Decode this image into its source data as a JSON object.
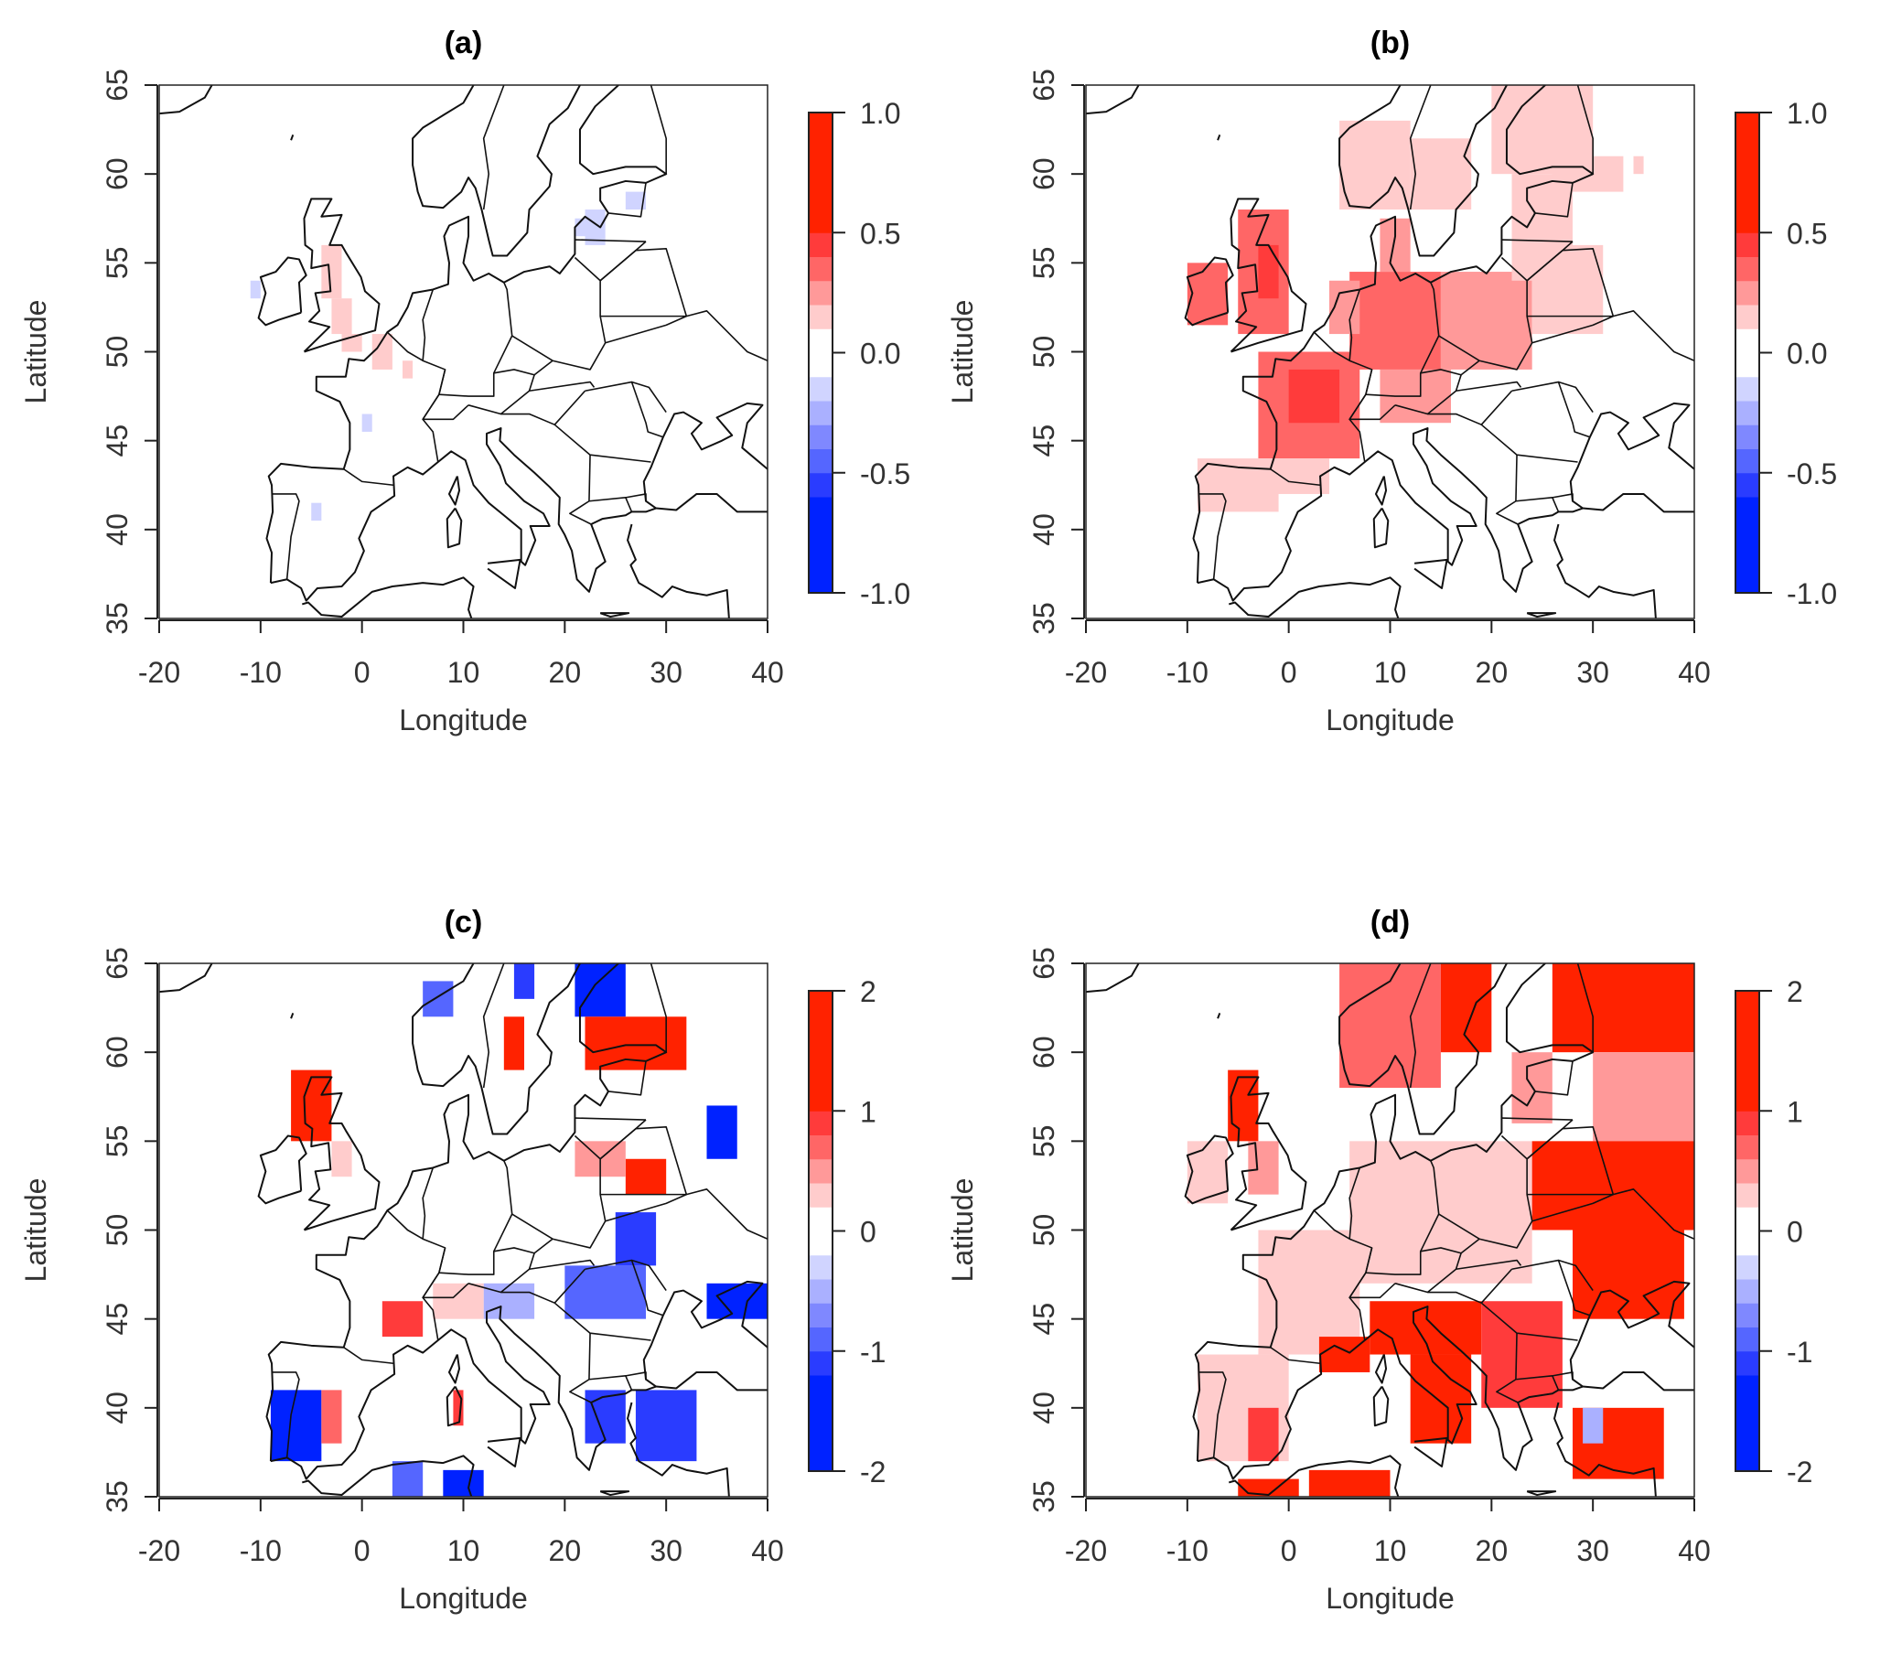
{
  "chart_data": [
    {
      "type": "heatmap",
      "title": "(a)",
      "xlabel": "Longitude",
      "ylabel": "Latitude",
      "xlim": [
        -20,
        40
      ],
      "ylim": [
        35,
        65
      ],
      "xticks": [
        "-20",
        "-10",
        "0",
        "10",
        "20",
        "30",
        "40"
      ],
      "yticks": [
        "35",
        "40",
        "45",
        "50",
        "55",
        "60",
        "65"
      ],
      "colorbar": {
        "range": [
          -1,
          1
        ],
        "ticks": [
          "-1.0",
          "-0.5",
          "0.0",
          "0.5",
          "1.0"
        ]
      },
      "cells": [
        [
          -4,
          53,
          -2,
          56,
          0.15
        ],
        [
          -3,
          51,
          -1,
          53,
          0.15
        ],
        [
          -2,
          50,
          0,
          51,
          0.12
        ],
        [
          1,
          49,
          3,
          51,
          0.12
        ],
        [
          4,
          48.5,
          5,
          49.5,
          0.12
        ],
        [
          -11,
          53,
          -10,
          54,
          -0.15
        ],
        [
          0,
          45.5,
          1,
          46.5,
          -0.15
        ],
        [
          -5,
          40.5,
          -4,
          41.5,
          -0.15
        ],
        [
          22,
          56,
          24,
          58,
          -0.15
        ],
        [
          26,
          58,
          28,
          59,
          -0.15
        ],
        [
          21,
          56.5,
          22,
          57.5,
          -0.12
        ]
      ]
    },
    {
      "type": "heatmap",
      "title": "(b)",
      "xlabel": "Longitude",
      "ylabel": "Latitude",
      "xlim": [
        -20,
        40
      ],
      "ylim": [
        35,
        65
      ],
      "xticks": [
        "-20",
        "-10",
        "0",
        "10",
        "20",
        "30",
        "40"
      ],
      "yticks": [
        "35",
        "40",
        "45",
        "50",
        "55",
        "60",
        "65"
      ],
      "colorbar": {
        "range": [
          -1,
          1
        ],
        "ticks": [
          "-1.0",
          "-0.5",
          "0.0",
          "0.5",
          "1.0"
        ]
      },
      "cells": [
        [
          -5,
          51,
          0,
          58,
          0.35
        ],
        [
          -3,
          53,
          -1,
          56,
          0.45
        ],
        [
          -10,
          51.5,
          -6,
          55,
          0.3
        ],
        [
          -3,
          44,
          7,
          50,
          0.35
        ],
        [
          0,
          46,
          5,
          49,
          0.42
        ],
        [
          -2,
          42,
          4,
          44,
          0.15
        ],
        [
          -9,
          41,
          -1,
          44,
          0.15
        ],
        [
          6,
          49,
          15,
          54.5,
          0.3
        ],
        [
          4,
          51,
          7,
          54,
          0.22
        ],
        [
          9,
          46,
          16,
          49,
          0.22
        ],
        [
          15,
          49,
          24,
          54.5,
          0.22
        ],
        [
          24,
          51,
          31,
          56,
          0.15
        ],
        [
          22,
          54,
          28,
          60,
          0.15
        ],
        [
          5,
          58,
          12,
          63,
          0.15
        ],
        [
          12,
          58,
          18,
          62,
          0.12
        ],
        [
          20,
          60,
          30,
          65,
          0.12
        ],
        [
          26,
          59,
          33,
          61,
          0.12
        ],
        [
          34,
          60,
          35,
          61,
          0.12
        ],
        [
          9,
          54.5,
          12,
          57.5,
          0.2
        ]
      ]
    },
    {
      "type": "heatmap",
      "title": "(c)",
      "xlabel": "Longitude",
      "ylabel": "Latitude",
      "xlim": [
        -20,
        40
      ],
      "ylim": [
        35,
        65
      ],
      "xticks": [
        "-20",
        "-10",
        "0",
        "10",
        "20",
        "30",
        "40"
      ],
      "yticks": [
        "35",
        "40",
        "45",
        "50",
        "55",
        "60",
        "65"
      ],
      "colorbar": {
        "range": [
          -2,
          2
        ],
        "ticks": [
          "-2",
          "-1",
          "0",
          "1",
          "2"
        ]
      },
      "cells": [
        [
          -7,
          55,
          -3,
          59,
          1.2
        ],
        [
          -3,
          53,
          -1,
          55,
          0.3
        ],
        [
          6,
          62,
          9,
          64,
          -0.8
        ],
        [
          15,
          63,
          17,
          65,
          -1.0
        ],
        [
          21,
          62,
          26,
          65,
          -1.2
        ],
        [
          14,
          59,
          16,
          62,
          1.0
        ],
        [
          22,
          59,
          32,
          62,
          1.0
        ],
        [
          34,
          54,
          37,
          57,
          -1.2
        ],
        [
          26,
          52,
          30,
          54,
          1.1
        ],
        [
          21,
          53,
          26,
          55,
          0.4
        ],
        [
          25,
          48,
          29,
          51,
          -1.0
        ],
        [
          20,
          45,
          28,
          48,
          -0.8
        ],
        [
          34,
          45,
          40,
          47,
          -1.2
        ],
        [
          12,
          45,
          17,
          47,
          -0.5
        ],
        [
          2,
          44,
          6,
          46,
          0.8
        ],
        [
          7,
          45,
          12,
          47,
          0.3
        ],
        [
          -9,
          37,
          -4,
          41,
          -1.2
        ],
        [
          -4,
          38,
          -2,
          41,
          0.6
        ],
        [
          22,
          38,
          26,
          41,
          -1.0
        ],
        [
          27,
          37,
          33,
          41,
          -1.0
        ],
        [
          3,
          35,
          6,
          37,
          -0.8
        ],
        [
          8,
          35,
          12,
          36.5,
          -1.2
        ],
        [
          9,
          39,
          10,
          41,
          0.8
        ]
      ]
    },
    {
      "type": "heatmap",
      "title": "(d)",
      "xlabel": "Longitude",
      "ylabel": "Latitude",
      "xlim": [
        -20,
        40
      ],
      "ylim": [
        35,
        65
      ],
      "xticks": [
        "-20",
        "-10",
        "0",
        "10",
        "20",
        "30",
        "40"
      ],
      "yticks": [
        "35",
        "40",
        "45",
        "50",
        "55",
        "60",
        "65"
      ],
      "colorbar": {
        "range": [
          -2,
          2
        ],
        "ticks": [
          "-2",
          "-1",
          "0",
          "1",
          "2"
        ]
      },
      "cells": [
        [
          -6,
          55,
          -3,
          59,
          1.2
        ],
        [
          -4,
          52,
          -1,
          55,
          0.5
        ],
        [
          -10,
          51.5,
          -6,
          55,
          0.3
        ],
        [
          5,
          58,
          15,
          65,
          0.6
        ],
        [
          15,
          60,
          20,
          65,
          1.0
        ],
        [
          22,
          56,
          26,
          60,
          0.4
        ],
        [
          26,
          60,
          40,
          65,
          1.2
        ],
        [
          30,
          55,
          40,
          60,
          0.5
        ],
        [
          -3,
          43,
          7,
          50,
          0.3
        ],
        [
          6,
          47,
          24,
          55,
          0.3
        ],
        [
          24,
          50,
          40,
          55,
          1.0
        ],
        [
          28,
          45,
          39,
          50,
          1.1
        ],
        [
          8,
          43,
          19,
          46,
          1.1
        ],
        [
          12,
          38,
          18,
          43,
          1.0
        ],
        [
          19,
          40,
          27,
          46,
          0.9
        ],
        [
          3,
          42,
          8,
          44,
          1.0
        ],
        [
          -9,
          37,
          0,
          43,
          0.3
        ],
        [
          -4,
          37,
          -1,
          40,
          0.8
        ],
        [
          28,
          36,
          37,
          40,
          1.0
        ],
        [
          29,
          38,
          31,
          40,
          -0.4
        ],
        [
          2,
          35,
          10,
          36.5,
          1.2
        ],
        [
          -5,
          35,
          1,
          36,
          1.0
        ]
      ]
    }
  ]
}
